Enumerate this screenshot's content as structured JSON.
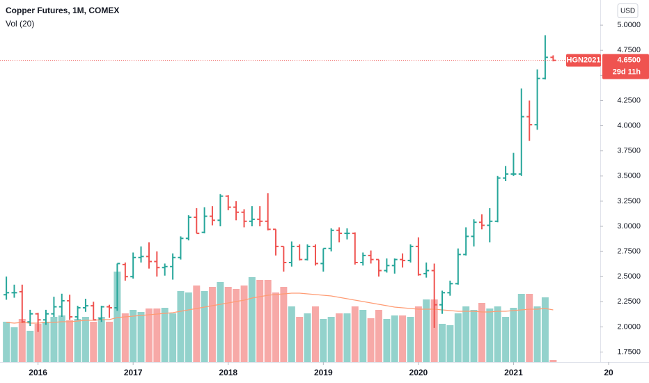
{
  "chart_data": {
    "type": "ohlc",
    "title": "Copper Futures, 1M, COMEX",
    "subtitle": "Vol (20)",
    "axis_unit": "USD",
    "x": [
      2015.667,
      2015.75,
      2015.833,
      2015.917,
      2016.0,
      2016.083,
      2016.167,
      2016.25,
      2016.333,
      2016.417,
      2016.5,
      2016.583,
      2016.667,
      2016.75,
      2016.833,
      2016.917,
      2017.0,
      2017.083,
      2017.167,
      2017.25,
      2017.333,
      2017.417,
      2017.5,
      2017.583,
      2017.667,
      2017.75,
      2017.833,
      2017.917,
      2018.0,
      2018.083,
      2018.167,
      2018.25,
      2018.333,
      2018.417,
      2018.5,
      2018.583,
      2018.667,
      2018.75,
      2018.833,
      2018.917,
      2019.0,
      2019.083,
      2019.167,
      2019.25,
      2019.333,
      2019.417,
      2019.5,
      2019.583,
      2019.667,
      2019.75,
      2019.833,
      2019.917,
      2020.0,
      2020.083,
      2020.167,
      2020.25,
      2020.333,
      2020.417,
      2020.5,
      2020.583,
      2020.667,
      2020.75,
      2020.833,
      2020.917,
      2021.0,
      2021.083,
      2021.167,
      2021.25,
      2021.333,
      2021.417
    ],
    "open": [
      2.32,
      2.34,
      2.35,
      2.05,
      2.13,
      2.07,
      2.13,
      2.2,
      2.26,
      2.1,
      2.19,
      2.21,
      2.08,
      2.2,
      2.19,
      2.62,
      2.5,
      2.69,
      2.7,
      2.65,
      2.59,
      2.6,
      2.69,
      2.88,
      3.09,
      2.94,
      3.1,
      3.06,
      3.3,
      3.19,
      3.14,
      3.05,
      3.07,
      3.05,
      2.97,
      2.8,
      2.64,
      2.8,
      2.67,
      2.8,
      2.63,
      2.78,
      2.96,
      2.93,
      2.93,
      2.64,
      2.71,
      2.67,
      2.56,
      2.61,
      2.67,
      2.66,
      2.8,
      2.53,
      2.56,
      2.22,
      2.34,
      2.43,
      2.72,
      2.9,
      3.04,
      3.01,
      3.05,
      3.48,
      3.52,
      3.52,
      4.09,
      4.01,
      4.47,
      4.68
    ],
    "high": [
      2.5,
      2.42,
      2.42,
      2.17,
      2.14,
      2.17,
      2.3,
      2.33,
      2.32,
      2.21,
      2.28,
      2.25,
      2.21,
      2.22,
      2.63,
      2.64,
      2.74,
      2.8,
      2.84,
      2.75,
      2.63,
      2.73,
      2.9,
      3.11,
      3.18,
      3.19,
      3.2,
      3.32,
      3.31,
      3.25,
      3.17,
      3.2,
      3.2,
      3.33,
      2.97,
      2.8,
      2.85,
      2.82,
      2.82,
      2.82,
      2.78,
      2.98,
      2.99,
      2.98,
      2.94,
      2.74,
      2.76,
      2.67,
      2.68,
      2.68,
      2.73,
      2.82,
      2.89,
      2.64,
      2.63,
      2.36,
      2.46,
      2.78,
      2.99,
      3.07,
      3.12,
      3.18,
      3.5,
      3.6,
      3.73,
      4.37,
      4.25,
      4.56,
      4.9,
      4.7
    ],
    "low": [
      2.27,
      2.29,
      2.04,
      2.01,
      1.95,
      2.02,
      2.1,
      2.1,
      2.07,
      2.07,
      2.15,
      2.07,
      2.05,
      2.09,
      2.16,
      2.46,
      2.48,
      2.64,
      2.58,
      2.5,
      2.51,
      2.47,
      2.67,
      2.86,
      2.93,
      2.93,
      3.01,
      3.0,
      3.16,
      3.06,
      2.99,
      3.0,
      3.0,
      2.96,
      2.71,
      2.55,
      2.6,
      2.66,
      2.66,
      2.61,
      2.55,
      2.75,
      2.84,
      2.87,
      2.62,
      2.61,
      2.63,
      2.5,
      2.54,
      2.53,
      2.59,
      2.64,
      2.51,
      2.49,
      1.99,
      2.13,
      2.31,
      2.42,
      2.71,
      2.8,
      2.97,
      2.84,
      3.04,
      3.45,
      3.5,
      3.5,
      3.85,
      3.96,
      4.46,
      4.64
    ],
    "close": [
      2.34,
      2.34,
      2.05,
      2.13,
      2.07,
      2.13,
      2.2,
      2.26,
      2.1,
      2.19,
      2.21,
      2.07,
      2.2,
      2.19,
      2.63,
      2.5,
      2.69,
      2.7,
      2.65,
      2.59,
      2.6,
      2.69,
      2.88,
      3.09,
      2.93,
      3.1,
      3.06,
      3.3,
      3.19,
      3.14,
      3.05,
      3.07,
      3.05,
      2.97,
      2.8,
      2.64,
      2.8,
      2.67,
      2.8,
      2.63,
      2.78,
      2.96,
      2.93,
      2.93,
      2.64,
      2.71,
      2.67,
      2.56,
      2.61,
      2.67,
      2.66,
      2.8,
      2.52,
      2.56,
      2.22,
      2.34,
      2.43,
      2.72,
      2.9,
      3.04,
      3.01,
      3.05,
      3.48,
      3.52,
      3.52,
      4.09,
      4.01,
      4.47,
      4.68,
      4.65
    ],
    "volume": [
      58,
      50,
      62,
      45,
      55,
      58,
      65,
      67,
      60,
      62,
      65,
      58,
      65,
      58,
      130,
      70,
      75,
      72,
      77,
      77,
      78,
      70,
      102,
      100,
      110,
      102,
      108,
      115,
      108,
      105,
      110,
      122,
      118,
      118,
      100,
      108,
      80,
      65,
      70,
      80,
      62,
      65,
      70,
      70,
      80,
      75,
      63,
      75,
      62,
      67,
      67,
      65,
      80,
      90,
      90,
      55,
      53,
      70,
      80,
      75,
      85,
      77,
      80,
      65,
      78,
      98,
      98,
      80,
      93,
      3
    ],
    "volume_ma": [
      57,
      56,
      57,
      56,
      56,
      57,
      57,
      58,
      58,
      59,
      60,
      60,
      61,
      61,
      64,
      65,
      66,
      67,
      68,
      69,
      70,
      71,
      73,
      75,
      77,
      79,
      81,
      83,
      85,
      87,
      89,
      92,
      94,
      96,
      97,
      98,
      99,
      99,
      98,
      97,
      96,
      95,
      93,
      91,
      89,
      87,
      85,
      83,
      81,
      79,
      78,
      77,
      76,
      76,
      76,
      75,
      74,
      73,
      73,
      73,
      72,
      72,
      73,
      73,
      74,
      75,
      76,
      76,
      77,
      75
    ],
    "up_color": "#26a69a",
    "down_color": "#ef5350",
    "up_volume_color": "#93d2cc",
    "down_volume_color": "#f7a9a7",
    "ma_color": "#ff9b73",
    "grid": false,
    "xlim": [
      2015.6,
      2022.0
    ],
    "xticks": [
      2016,
      2017,
      2018,
      2019,
      2020,
      2021,
      {
        "value": 2022,
        "label": "20"
      }
    ],
    "ylim": [
      1.65,
      5.25
    ],
    "yticks": [
      {
        "value": 1.75,
        "label": "1.7500"
      },
      {
        "value": 2,
        "label": "2.0000"
      },
      {
        "value": 2.25,
        "label": "2.2500"
      },
      {
        "value": 2.5,
        "label": "2.5000"
      },
      {
        "value": 2.75,
        "label": "2.7500"
      },
      {
        "value": 3,
        "label": "3.0000"
      },
      {
        "value": 3.25,
        "label": "3.2500"
      },
      {
        "value": 3.5,
        "label": "3.5000"
      },
      {
        "value": 3.75,
        "label": "3.7500"
      },
      {
        "value": 4,
        "label": "4.0000"
      },
      {
        "value": 4.25,
        "label": "4.2500"
      },
      {
        "value": 4.5,
        "label": "4.5000"
      },
      {
        "value": 4.75,
        "label": "4.7500"
      },
      {
        "value": 5,
        "label": "5.0000"
      }
    ],
    "vol_lim": [
      0,
      300
    ],
    "last_price": {
      "symbol": "HGN2021",
      "value": 4.65,
      "label": "4.6500",
      "countdown": "29d 11h"
    }
  }
}
